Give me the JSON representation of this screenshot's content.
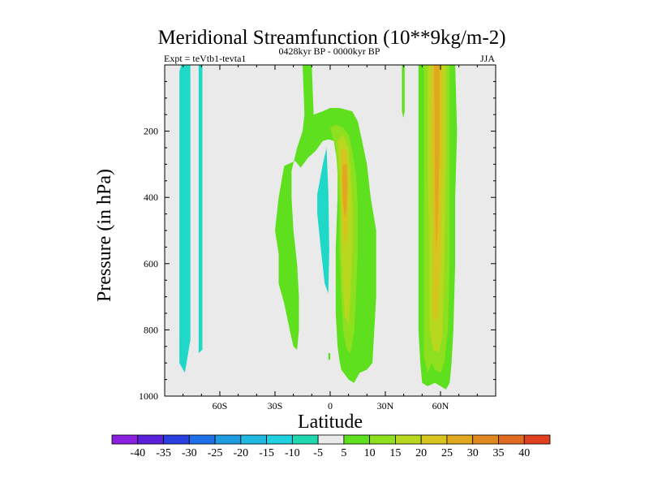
{
  "chart_data": {
    "type": "contour",
    "title": "Meridional Streamfunction (10**9kg/m-2)",
    "left_string": "Expt = teVtb1-tevta1",
    "center_string": "0428kyr BP - 0000kyr BP",
    "right_string": "JJA",
    "xlabel": "Latitude",
    "ylabel": "Pressure (in hPa)",
    "xlim": [
      -90,
      90
    ],
    "ylim": [
      1000,
      0
    ],
    "x_ticks": [
      {
        "value": -60,
        "label": "60S"
      },
      {
        "value": -30,
        "label": "30S"
      },
      {
        "value": 0,
        "label": "0"
      },
      {
        "value": 30,
        "label": "30N"
      },
      {
        "value": 60,
        "label": "60N"
      }
    ],
    "y_ticks": [
      {
        "value": 200,
        "label": "200"
      },
      {
        "value": 400,
        "label": "400"
      },
      {
        "value": 600,
        "label": "600"
      },
      {
        "value": 800,
        "label": "800"
      },
      {
        "value": 1000,
        "label": "1000"
      }
    ],
    "colorbar": {
      "labels": [
        "-40",
        "-35",
        "-30",
        "-25",
        "-20",
        "-15",
        "-10",
        "-5",
        "5",
        "10",
        "15",
        "20",
        "25",
        "30",
        "35",
        "40"
      ],
      "colors": [
        "#8a1fe0",
        "#5a1fd8",
        "#2a3fe0",
        "#1f70e8",
        "#1f9be0",
        "#1fb8e0",
        "#1fd0e0",
        "#20d8b0",
        "#eaeaea",
        "#5ee01f",
        "#8ee01f",
        "#b8d81f",
        "#d8c41f",
        "#e0a81f",
        "#e0881f",
        "#e06a1f",
        "#e0401f"
      ]
    },
    "regions": [
      {
        "name": "neg-band-80S",
        "level": -10,
        "color": "#20d8c8",
        "points": [
          [
            -81,
            0
          ],
          [
            -76,
            0
          ],
          [
            -76,
            830
          ],
          [
            -79,
            930
          ],
          [
            -82,
            900
          ],
          [
            -82,
            20
          ]
        ]
      },
      {
        "name": "neg-band-70S",
        "level": -10,
        "color": "#20d8c8",
        "points": [
          [
            -71.5,
            0
          ],
          [
            -69.5,
            0
          ],
          [
            -69.5,
            860
          ],
          [
            -71.5,
            870
          ]
        ]
      },
      {
        "name": "neg-core-5S",
        "level": -10,
        "color": "#20d8c8",
        "points": [
          [
            -7,
            390
          ],
          [
            -4,
            300
          ],
          [
            -2,
            250
          ],
          [
            -1,
            380
          ],
          [
            -0.5,
            560
          ],
          [
            -1,
            690
          ],
          [
            -3,
            660
          ],
          [
            -5,
            560
          ],
          [
            -7,
            450
          ]
        ]
      },
      {
        "name": "pos-upper-arc",
        "level": 5,
        "color": "#5ee01f",
        "points": [
          [
            -15,
            0
          ],
          [
            -10,
            0
          ],
          [
            -9,
            150
          ],
          [
            -4,
            140
          ],
          [
            0,
            130
          ],
          [
            5,
            130
          ],
          [
            12,
            140
          ],
          [
            15,
            170
          ],
          [
            17,
            220
          ],
          [
            20,
            300
          ],
          [
            22,
            400
          ],
          [
            25,
            500
          ],
          [
            25,
            700
          ],
          [
            24,
            800
          ],
          [
            23,
            900
          ],
          [
            20,
            920
          ],
          [
            16,
            930
          ],
          [
            13,
            960
          ],
          [
            10,
            950
          ],
          [
            6,
            920
          ],
          [
            5,
            890
          ],
          [
            4,
            850
          ],
          [
            3,
            750
          ],
          [
            3,
            560
          ],
          [
            4,
            400
          ],
          [
            4,
            300
          ],
          [
            2,
            230
          ],
          [
            -1,
            225
          ],
          [
            -4,
            230
          ],
          [
            -8,
            260
          ],
          [
            -12,
            280
          ],
          [
            -16,
            310
          ],
          [
            -19,
            290
          ],
          [
            -25,
            305
          ],
          [
            -28,
            400
          ],
          [
            -30,
            500
          ],
          [
            -28,
            570
          ],
          [
            -28,
            660
          ],
          [
            -25,
            720
          ],
          [
            -22,
            800
          ],
          [
            -20,
            850
          ],
          [
            -18,
            860
          ],
          [
            -17,
            800
          ],
          [
            -17,
            700
          ],
          [
            -18,
            600
          ],
          [
            -20,
            500
          ],
          [
            -21,
            400
          ],
          [
            -21,
            320
          ],
          [
            -18,
            250
          ],
          [
            -15,
            200
          ],
          [
            -14,
            150
          ]
        ]
      },
      {
        "name": "pos-main-10",
        "level": 10,
        "color": "#8ee01f",
        "points": [
          [
            0,
            190
          ],
          [
            3,
            180
          ],
          [
            7,
            190
          ],
          [
            10,
            210
          ],
          [
            12,
            260
          ],
          [
            14,
            330
          ],
          [
            15,
            420
          ],
          [
            15,
            560
          ],
          [
            14,
            700
          ],
          [
            13,
            810
          ],
          [
            11,
            870
          ],
          [
            9,
            860
          ],
          [
            7,
            800
          ],
          [
            6,
            700
          ],
          [
            5,
            560
          ],
          [
            5,
            440
          ],
          [
            4,
            330
          ],
          [
            3,
            250
          ]
        ]
      },
      {
        "name": "pos-main-15",
        "level": 15,
        "color": "#b8d81f",
        "points": [
          [
            4,
            230
          ],
          [
            7,
            210
          ],
          [
            10,
            250
          ],
          [
            11,
            320
          ],
          [
            12,
            420
          ],
          [
            12,
            560
          ],
          [
            11,
            700
          ],
          [
            10,
            780
          ],
          [
            8,
            760
          ],
          [
            7,
            680
          ],
          [
            6,
            560
          ],
          [
            6,
            440
          ],
          [
            5,
            320
          ]
        ]
      },
      {
        "name": "pos-main-20",
        "level": 20,
        "color": "#d8c41f",
        "points": [
          [
            6,
            250
          ],
          [
            9,
            260
          ],
          [
            10,
            330
          ],
          [
            10,
            430
          ],
          [
            9,
            520
          ],
          [
            8,
            560
          ],
          [
            7,
            500
          ],
          [
            6,
            400
          ]
        ]
      },
      {
        "name": "pos-main-25",
        "level": 25,
        "color": "#e0a81f",
        "points": [
          [
            7,
            300
          ],
          [
            9,
            300
          ],
          [
            9.5,
            360
          ],
          [
            9,
            430
          ],
          [
            8,
            460
          ],
          [
            7,
            420
          ],
          [
            6.5,
            350
          ]
        ]
      },
      {
        "name": "pos-nh-5",
        "level": 5,
        "color": "#5ee01f",
        "points": [
          [
            48,
            0
          ],
          [
            68,
            0
          ],
          [
            69,
            200
          ],
          [
            68,
            400
          ],
          [
            68,
            600
          ],
          [
            67,
            800
          ],
          [
            66,
            900
          ],
          [
            65,
            960
          ],
          [
            63,
            980
          ],
          [
            60,
            970
          ],
          [
            57,
            960
          ],
          [
            53,
            970
          ],
          [
            50,
            960
          ],
          [
            49,
            900
          ],
          [
            48,
            800
          ],
          [
            48,
            600
          ],
          [
            48,
            400
          ],
          [
            48,
            200
          ]
        ]
      },
      {
        "name": "pos-nh-10",
        "level": 10,
        "color": "#8ee01f",
        "points": [
          [
            51,
            0
          ],
          [
            65,
            0
          ],
          [
            65,
            200
          ],
          [
            65,
            400
          ],
          [
            65,
            600
          ],
          [
            64,
            800
          ],
          [
            62,
            900
          ],
          [
            60,
            930
          ],
          [
            57,
            920
          ],
          [
            55,
            900
          ],
          [
            53,
            930
          ],
          [
            51,
            880
          ],
          [
            51,
            700
          ],
          [
            51,
            400
          ]
        ]
      },
      {
        "name": "pos-nh-15",
        "level": 15,
        "color": "#b8d81f",
        "points": [
          [
            53,
            0
          ],
          [
            63,
            0
          ],
          [
            63,
            300
          ],
          [
            62,
            600
          ],
          [
            61,
            820
          ],
          [
            59,
            870
          ],
          [
            56,
            860
          ],
          [
            54,
            800
          ],
          [
            54,
            600
          ],
          [
            53,
            300
          ]
        ]
      },
      {
        "name": "pos-nh-20",
        "level": 20,
        "color": "#d8c41f",
        "points": [
          [
            55,
            0
          ],
          [
            61,
            0
          ],
          [
            61,
            300
          ],
          [
            60,
            600
          ],
          [
            58,
            780
          ],
          [
            56,
            760
          ],
          [
            56,
            500
          ],
          [
            55,
            250
          ]
        ]
      },
      {
        "name": "pos-nh-25",
        "level": 25,
        "color": "#e0a81f",
        "points": [
          [
            56.5,
            0
          ],
          [
            59.5,
            0
          ],
          [
            59.5,
            250
          ],
          [
            58.5,
            500
          ],
          [
            57.5,
            560
          ],
          [
            57,
            400
          ]
        ]
      },
      {
        "name": "pos-nh-small",
        "level": 5,
        "color": "#5ee01f",
        "points": [
          [
            39,
            0
          ],
          [
            40.5,
            0
          ],
          [
            40.5,
            140
          ],
          [
            39.8,
            160
          ],
          [
            39,
            140
          ]
        ]
      },
      {
        "name": "pos-sh-small",
        "level": 5,
        "color": "#5ee01f",
        "points": [
          [
            -1,
            870
          ],
          [
            0,
            870
          ],
          [
            0,
            890
          ],
          [
            -1,
            890
          ]
        ]
      }
    ]
  }
}
